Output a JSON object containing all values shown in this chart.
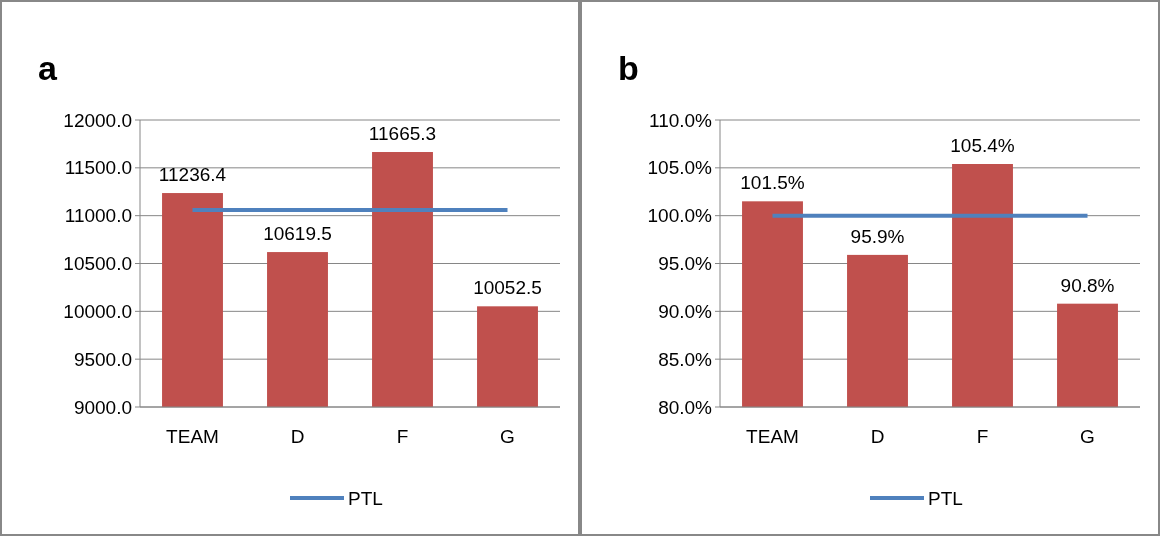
{
  "chart_data": [
    {
      "type": "bar",
      "title": "a",
      "categories": [
        "TEAM",
        "D",
        "F",
        "G"
      ],
      "ylim": [
        9000,
        12000
      ],
      "yticks": [
        {
          "value": 9000,
          "label": "9000.0"
        },
        {
          "value": 9500,
          "label": "9500.0"
        },
        {
          "value": 10000,
          "label": "10000.0"
        },
        {
          "value": 10500,
          "label": "10500.0"
        },
        {
          "value": 11000,
          "label": "11000.0"
        },
        {
          "value": 11500,
          "label": "11500.0"
        },
        {
          "value": 12000,
          "label": "12000.0"
        }
      ],
      "grid": "y",
      "legend": "bottom",
      "series": [
        {
          "color": "#c0504d",
          "values": [
            11236.4,
            10619.5,
            11665.3,
            10052.5
          ],
          "value_labels": [
            "11236.4",
            "10619.5",
            "11665.3",
            "10052.5"
          ]
        },
        {
          "type": "line",
          "name": "PTL",
          "color": "#4f81bd",
          "values": [
            11060,
            11060,
            11060,
            11060
          ]
        }
      ]
    },
    {
      "type": "bar",
      "title": "b",
      "categories": [
        "TEAM",
        "D",
        "F",
        "G"
      ],
      "ylim": [
        80,
        110
      ],
      "yticks": [
        {
          "value": 80,
          "label": "80.0%"
        },
        {
          "value": 85,
          "label": "85.0%"
        },
        {
          "value": 90,
          "label": "90.0%"
        },
        {
          "value": 95,
          "label": "95.0%"
        },
        {
          "value": 100,
          "label": "100.0%"
        },
        {
          "value": 105,
          "label": "105.0%"
        },
        {
          "value": 110,
          "label": "110.0%"
        }
      ],
      "grid": "y",
      "legend": "bottom",
      "series": [
        {
          "color": "#c0504d",
          "values": [
            101.5,
            95.9,
            105.4,
            90.8
          ],
          "value_labels": [
            "101.5%",
            "95.9%",
            "105.4%",
            "90.8%"
          ]
        },
        {
          "type": "line",
          "name": "PTL",
          "color": "#4f81bd",
          "values": [
            100,
            100,
            100,
            100
          ]
        }
      ]
    }
  ]
}
